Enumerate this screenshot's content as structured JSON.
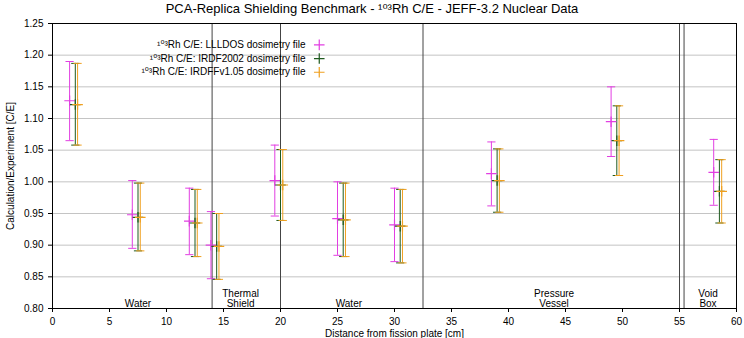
{
  "chart_data": {
    "type": "scatter",
    "title": "PCA-Replica Shielding Benchmark - ¹⁰³Rh C/E - JEFF-3.2 Nuclear Data",
    "x_label": "Distance from fission plate [cm]",
    "y_label": "Calculation/Experiment [C/E]",
    "xlim": [
      0,
      60
    ],
    "xticks": [
      0,
      5,
      10,
      15,
      20,
      25,
      30,
      35,
      40,
      45,
      50,
      55,
      60
    ],
    "ylim": [
      0.8,
      1.25
    ],
    "yticks": [
      {
        "value": 0.8,
        "label": "0.80"
      },
      {
        "value": 0.85,
        "label": "0.85"
      },
      {
        "value": 0.9,
        "label": "0.90"
      },
      {
        "value": 0.95,
        "label": "0.95"
      },
      {
        "value": 1.0,
        "label": "1.00"
      },
      {
        "value": 1.05,
        "label": "1.05"
      },
      {
        "value": 1.1,
        "label": "1.10"
      },
      {
        "value": 1.15,
        "label": "1.15"
      },
      {
        "value": 1.2,
        "label": "1.20"
      },
      {
        "value": 1.25,
        "label": "1.25"
      }
    ],
    "grid": "y",
    "legend": "top",
    "boundaries": [
      14,
      20,
      32.5,
      55,
      55.4
    ],
    "annotations": [
      {
        "text": "Water",
        "x": 7.5
      },
      {
        "text": "Thermal\nShield",
        "x": 16.5
      },
      {
        "text": "Water",
        "x": 26
      },
      {
        "text": "Pressure\nVessel",
        "x": 44
      },
      {
        "text": "Void\nBox",
        "x": 57.5
      }
    ],
    "series": [
      {
        "name": "¹⁰³Rh C/E: LLLDOS dosimetry file",
        "color": "#e23fe2",
        "marker": "plus",
        "x": [
          1.5,
          7.0,
          12.0,
          13.9,
          19.5,
          25.0,
          30.0,
          38.5,
          49.0,
          58.0
        ],
        "values": [
          1.128,
          0.948,
          0.938,
          0.9,
          1.002,
          0.942,
          0.932,
          1.013,
          1.095,
          1.015
        ],
        "error_low": [
          1.065,
          0.895,
          0.885,
          0.847,
          0.946,
          0.884,
          0.874,
          0.962,
          1.04,
          0.963
        ],
        "error_high": [
          1.19,
          1.002,
          0.99,
          0.953,
          1.058,
          1.0,
          0.99,
          1.063,
          1.15,
          1.067
        ]
      },
      {
        "name": "¹⁰³Rh C/E: IRDF2002 dosimetry file",
        "color": "#1f5a1f",
        "marker": "plus",
        "x": [
          2.0,
          7.5,
          12.5,
          14.4,
          20.0,
          25.5,
          30.5,
          39.0,
          49.5,
          58.5
        ],
        "values": [
          1.122,
          0.944,
          0.935,
          0.898,
          0.995,
          0.94,
          0.93,
          1.002,
          1.065,
          0.985
        ],
        "error_low": [
          1.058,
          0.891,
          0.882,
          0.846,
          0.939,
          0.882,
          0.872,
          0.952,
          1.01,
          0.935
        ],
        "error_high": [
          1.187,
          0.998,
          0.988,
          0.95,
          1.051,
          0.998,
          0.988,
          1.052,
          1.12,
          1.035
        ]
      },
      {
        "name": "¹⁰³Rh C/E: IRDFFv1.05 dosimetry file",
        "color": "#f0a020",
        "marker": "plus",
        "x": [
          2.2,
          7.7,
          12.7,
          14.6,
          20.2,
          25.7,
          30.7,
          39.2,
          49.7,
          58.7
        ],
        "values": [
          1.122,
          0.944,
          0.935,
          0.898,
          0.995,
          0.94,
          0.93,
          1.002,
          1.065,
          0.985
        ],
        "error_low": [
          1.058,
          0.891,
          0.882,
          0.846,
          0.939,
          0.882,
          0.872,
          0.952,
          1.01,
          0.935
        ],
        "error_high": [
          1.187,
          0.998,
          0.988,
          0.95,
          1.051,
          0.998,
          0.988,
          1.052,
          1.12,
          1.035
        ]
      }
    ]
  }
}
